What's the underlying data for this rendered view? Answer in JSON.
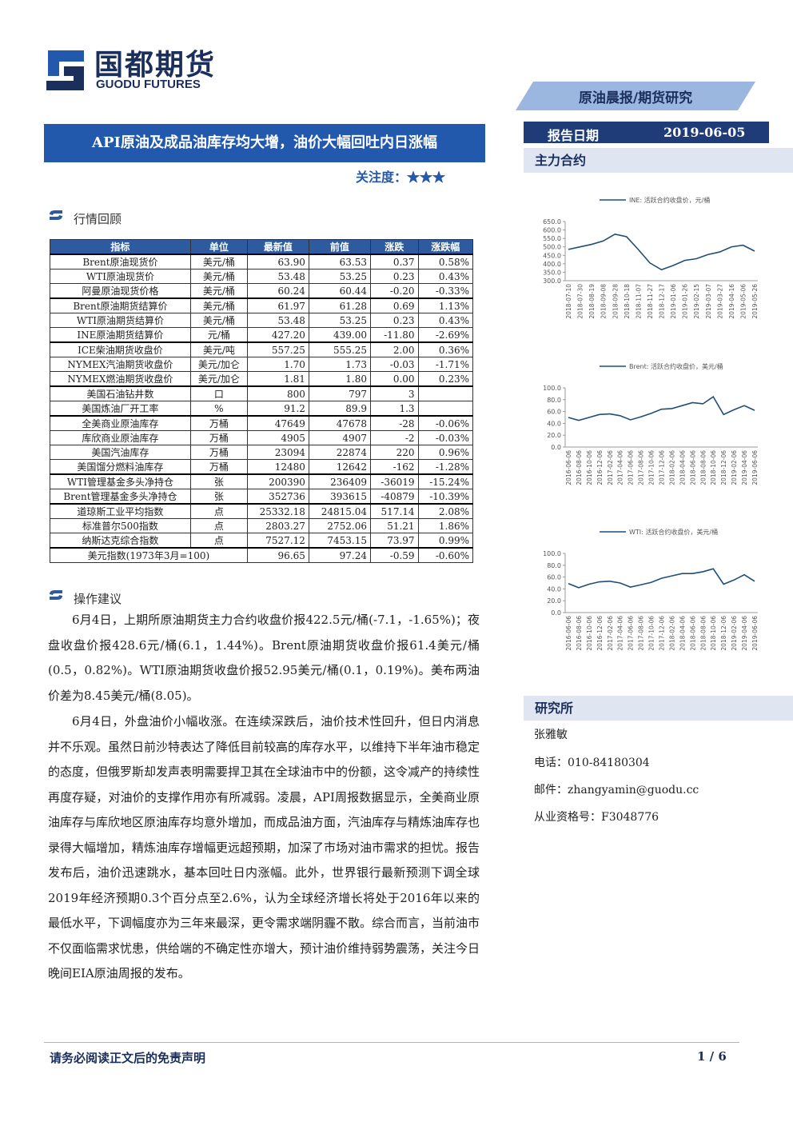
{
  "header": {
    "logo_cn": "国都期货",
    "logo_en": "GUODU FUTURES",
    "banner": "原油晨报/期货研究",
    "date_label": "报告日期",
    "date": "2019-06-05",
    "title": "API原油及成品油库存均大增，油价大幅回吐内日涨幅",
    "attention": "关注度：★★★"
  },
  "sections": {
    "review": "行情回顾",
    "advice": "操作建议",
    "contract": "主力合约",
    "institute": "研究所"
  },
  "table": {
    "header": [
      "指标",
      "单位",
      "最新值",
      "前值",
      "涨跌",
      "涨跌幅"
    ],
    "groups": [
      [
        [
          "Brent原油现货价",
          "美元/桶",
          "63.90",
          "63.53",
          "0.37",
          "0.58%"
        ],
        [
          "WTI原油现货价",
          "美元/桶",
          "53.48",
          "53.25",
          "0.23",
          "0.43%"
        ],
        [
          "阿曼原油现货价格",
          "美元/桶",
          "60.24",
          "60.44",
          "-0.20",
          "-0.33%"
        ]
      ],
      [
        [
          "Brent原油期货结算价",
          "美元/桶",
          "61.97",
          "61.28",
          "0.69",
          "1.13%"
        ],
        [
          "WTI原油期货结算价",
          "美元/桶",
          "53.48",
          "53.25",
          "0.23",
          "0.43%"
        ],
        [
          "INE原油期货结算价",
          "元/桶",
          "427.20",
          "439.00",
          "-11.80",
          "-2.69%"
        ]
      ],
      [
        [
          "ICE柴油期货收盘价",
          "美元/吨",
          "557.25",
          "555.25",
          "2.00",
          "0.36%"
        ],
        [
          "NYMEX汽油期货收盘价",
          "美元/加仑",
          "1.70",
          "1.73",
          "-0.03",
          "-1.71%"
        ],
        [
          "NYMEX燃油期货收盘价",
          "美元/加仑",
          "1.81",
          "1.80",
          "0.00",
          "0.23%"
        ]
      ],
      [
        [
          "美国石油钻井数",
          "口",
          "800",
          "797",
          "3",
          null
        ],
        [
          "美国炼油厂开工率",
          "%",
          "91.2",
          "89.9",
          "1.3",
          null
        ]
      ],
      [
        [
          "全美商业原油库存",
          "万桶",
          "47649",
          "47678",
          "-28",
          "-0.06%"
        ],
        [
          "库欣商业原油库存",
          "万桶",
          "4905",
          "4907",
          "-2",
          "-0.03%"
        ],
        [
          "美国汽油库存",
          "万桶",
          "23094",
          "22874",
          "220",
          "0.96%"
        ],
        [
          "美国馏分燃料油库存",
          "万桶",
          "12480",
          "12642",
          "-162",
          "-1.28%"
        ]
      ],
      [
        [
          "WTI管理基金多头净持仓",
          "张",
          "200390",
          "236409",
          "-36019",
          "-15.24%"
        ],
        [
          "Brent管理基金多头净持仓",
          "张",
          "352736",
          "393615",
          "-40879",
          "-10.39%"
        ]
      ],
      [
        [
          "道琼斯工业平均指数",
          "点",
          "25332.18",
          "24815.04",
          "517.14",
          "2.08%"
        ],
        [
          "标准普尔500指数",
          "点",
          "2803.27",
          "2752.06",
          "51.21",
          "1.86%"
        ],
        [
          "纳斯达克综合指数",
          "点",
          "7527.12",
          "7453.15",
          "73.97",
          "0.99%"
        ]
      ],
      [
        [
          "美元指数(1973年3月=100)",
          "96.65",
          "97.24",
          "-0.59",
          "-0.60%"
        ]
      ]
    ]
  },
  "paragraphs": [
    "6月4日，上期所原油期货主力合约收盘价报422.5元/桶(-7.1，-1.65%)；夜盘收盘价报428.6元/桶(6.1，1.44%)。Brent原油期货收盘价报61.4美元/桶(0.5，0.82%)。WTI原油期货收盘价报52.95美元/桶(0.1，0.19%)。美布两油价差为8.45美元/桶(8.05)。",
    "6月4日，外盘油价小幅收涨。在连续深跌后，油价技术性回升，但日内消息并不乐观。虽然日前沙特表达了降低目前较高的库存水平，以维持下半年油市稳定的态度，但俄罗斯却发声表明需要捍卫其在全球油市中的份额，这令减产的持续性再度存疑，对油价的支撑作用亦有所减弱。凌晨，API周报数据显示，全美商业原油库存与库欣地区原油库存均意外增加，而成品油方面，汽油库存与精炼油库存也录得大幅增加，精炼油库存增幅更远超预期，加深了市场对油市需求的担忧。报告发布后，油价迅速跳水，基本回吐日内涨幅。此外，世界银行最新预测下调全球2019年经济预期0.3个百分点至2.6%，认为全球经济增长将处于2016年以来的最低水平，下调幅度亦为三年来最深，更令需求端阴霾不散。综合而言，当前油市不仅面临需求忧患，供给端的不确定性亦增大，预计油价维持弱势震荡，关注今日晚间EIA原油周报的发布。"
  ],
  "analyst": {
    "name": "张雅敏",
    "phone": "电话：010-84180304",
    "email": "邮件：zhangyamin@guodu.cc",
    "license": "从业资格号：F3048776"
  },
  "footer": {
    "disclaimer": "请务必阅读正文后的免责声明",
    "page": "1 / 6"
  },
  "chart_data": [
    {
      "type": "line",
      "categories": [
        "2018-07-10",
        "2018-07-30",
        "2018-08-19",
        "2018-09-08",
        "2018-09-28",
        "2018-10-18",
        "2018-11-07",
        "2018-11-27",
        "2018-12-17",
        "2019-01-06",
        "2019-01-26",
        "2019-02-15",
        "2019-03-07",
        "2019-03-27",
        "2019-04-16",
        "2019-05-06",
        "2019-05-26"
      ],
      "series": [
        {
          "name": "INE: 活跃合约收盘价，元/桶",
          "color": "#1f4e79",
          "values": [
            485,
            500,
            515,
            535,
            575,
            560,
            485,
            405,
            365,
            390,
            420,
            430,
            455,
            470,
            500,
            510,
            475
          ]
        }
      ],
      "ylim": [
        300,
        650
      ],
      "yticks": [
        {
          "value": 300,
          "label": "300.0"
        },
        {
          "value": 350,
          "label": "350.0"
        },
        {
          "value": 400,
          "label": "400.0"
        },
        {
          "value": 450,
          "label": "450.0"
        },
        {
          "value": 500,
          "label": "500.0"
        },
        {
          "value": 550,
          "label": "550.0"
        },
        {
          "value": 600,
          "label": "600.0"
        },
        {
          "value": 650,
          "label": "650.0"
        }
      ]
    },
    {
      "type": "line",
      "categories": [
        "2016-06-06",
        "2016-08-06",
        "2016-10-06",
        "2016-12-06",
        "2017-02-06",
        "2017-04-06",
        "2017-06-06",
        "2017-08-06",
        "2017-10-06",
        "2017-12-06",
        "2018-02-06",
        "2018-04-06",
        "2018-06-06",
        "2018-08-06",
        "2018-10-06",
        "2018-12-06",
        "2019-02-06",
        "2019-04-06",
        "2019-06-06"
      ],
      "series": [
        {
          "name": "Brent: 活跃合约收盘价，美元/桶",
          "color": "#1f4e79",
          "values": [
            50,
            45,
            50,
            55,
            56,
            53,
            46,
            51,
            57,
            64,
            65,
            70,
            75,
            73,
            85,
            55,
            63,
            70,
            62
          ]
        }
      ],
      "ylim": [
        0,
        100
      ],
      "yticks": [
        {
          "value": 0,
          "label": "0.0"
        },
        {
          "value": 20,
          "label": "20.0"
        },
        {
          "value": 40,
          "label": "40.0"
        },
        {
          "value": 60,
          "label": "60.0"
        },
        {
          "value": 80,
          "label": "80.0"
        },
        {
          "value": 100,
          "label": "100.0"
        }
      ]
    },
    {
      "type": "line",
      "categories": [
        "2016-06-06",
        "2016-08-06",
        "2016-10-06",
        "2016-12-06",
        "2017-02-06",
        "2017-04-06",
        "2017-06-06",
        "2017-08-06",
        "2017-10-06",
        "2017-12-06",
        "2018-02-06",
        "2018-04-06",
        "2018-06-06",
        "2018-08-06",
        "2018-10-06",
        "2018-12-06",
        "2019-02-06",
        "2019-04-06",
        "2019-06-06"
      ],
      "series": [
        {
          "name": "WTI: 活跃合约收盘价，美元/桶",
          "color": "#1f4e79",
          "values": [
            49,
            42,
            48,
            52,
            53,
            50,
            43,
            47,
            51,
            58,
            62,
            66,
            66,
            69,
            74,
            48,
            55,
            64,
            53
          ]
        }
      ],
      "ylim": [
        0,
        100
      ],
      "yticks": [
        {
          "value": 0,
          "label": "0.0"
        },
        {
          "value": 20,
          "label": "20.0"
        },
        {
          "value": 40,
          "label": "40.0"
        },
        {
          "value": 60,
          "label": "60.0"
        },
        {
          "value": 80,
          "label": "80.0"
        },
        {
          "value": 100,
          "label": "100.0"
        }
      ]
    }
  ]
}
